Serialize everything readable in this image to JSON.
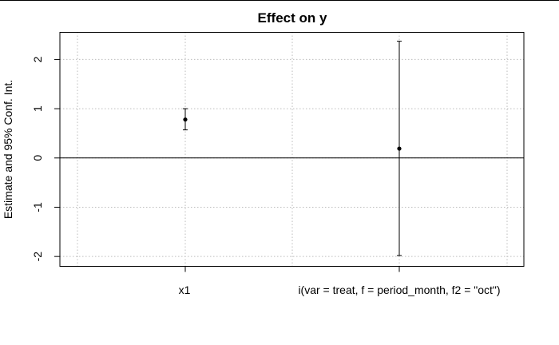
{
  "chart_data": {
    "type": "scatter",
    "title": "Effect on y",
    "xlabel": "",
    "ylabel": "Estimate and 95% Conf. Int.",
    "categories": [
      "x1",
      "i(var = treat, f = period_month, f2 = \"oct\")"
    ],
    "estimates": [
      0.78,
      0.19
    ],
    "ci_lower": [
      0.57,
      -1.98
    ],
    "ci_upper": [
      1.0,
      2.37
    ],
    "ylim": [
      -2.2,
      2.55
    ],
    "yticks": [
      "2",
      "1",
      "0",
      "-1",
      "-2"
    ],
    "ytick_values": [
      2,
      1,
      0,
      -1,
      -2
    ],
    "reference_line": 0,
    "grid": true
  }
}
